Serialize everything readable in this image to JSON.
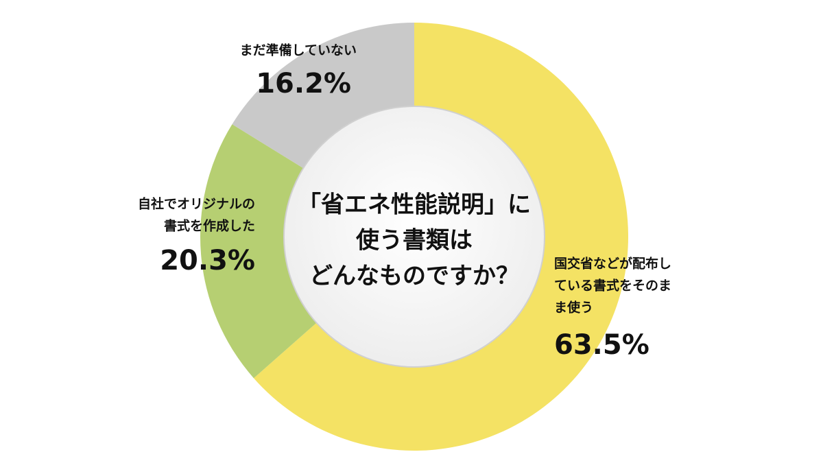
{
  "chart_data": {
    "type": "donut",
    "title": [
      "「省エネ性能説明」に",
      "使う書類は",
      "どんなものですか？"
    ],
    "categories": [
      [
        "国交省などが配布し",
        "ている書式をそのま",
        "ま使う"
      ],
      [
        "自社でオリジナルの",
        "書式を作成した"
      ],
      [
        "まだ準備していない"
      ]
    ],
    "values": [
      63.5,
      20.3,
      16.2
    ],
    "value_labels": [
      "63.5%",
      "20.3%",
      "16.2%"
    ],
    "colors": [
      "#f4e264",
      "#b6cf72",
      "#c9c9c9"
    ]
  }
}
